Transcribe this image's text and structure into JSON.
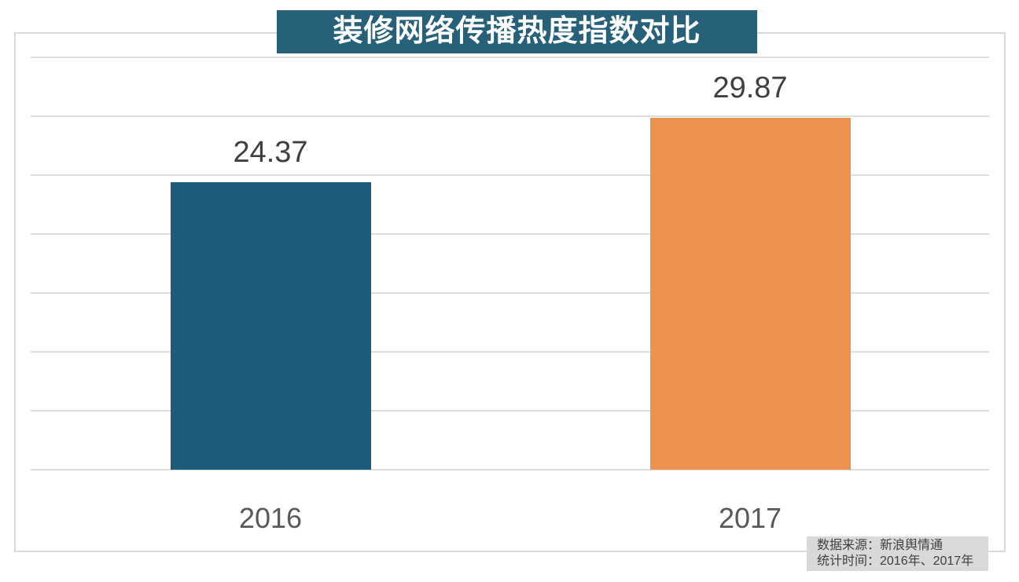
{
  "title": {
    "text": "装修网络传播热度指数对比"
  },
  "chart_data": {
    "type": "bar",
    "title": "装修网络传播热度指数对比",
    "categories": [
      "2016",
      "2017"
    ],
    "values": [
      24.37,
      29.87
    ],
    "data_labels": [
      "24.37",
      "29.87"
    ],
    "bar_colors": [
      "#1E5B7A",
      "#EE9150"
    ],
    "xlabel": "",
    "ylabel": "",
    "ylim": [
      0,
      35
    ],
    "grid_step": 5,
    "grid": true,
    "legend": false
  },
  "source_note": {
    "line1": "数据来源：新浪舆情通",
    "line2": "统计时间：2016年、2017年"
  },
  "colors": {
    "background": "#FFFFFF",
    "title_bg": "#266079",
    "title_text": "#FFFFFF",
    "frame_border": "#D9D9D9",
    "gridline": "#DEDEDE",
    "data_label": "#3F3F3F",
    "category_label": "#595959",
    "source_bg": "#D9D9D9",
    "source_text": "#404040"
  }
}
